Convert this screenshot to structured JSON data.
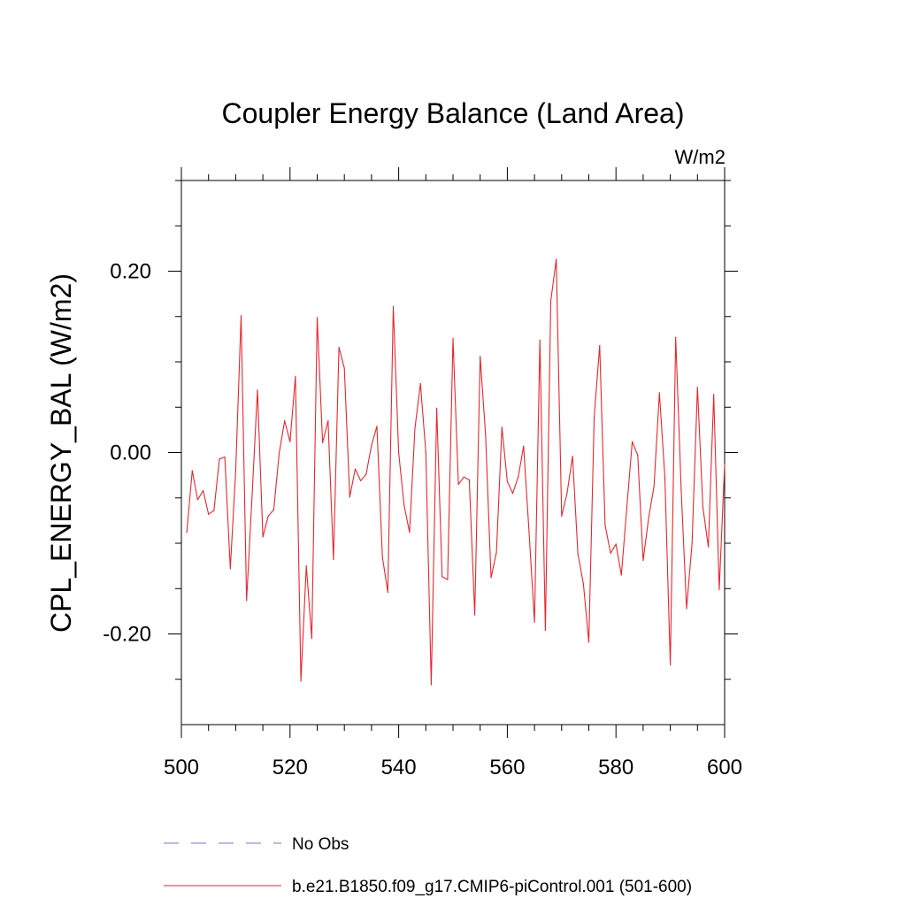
{
  "chart_data": {
    "type": "line",
    "title": "Coupler Energy Balance (Land Area)",
    "units": "W/m2",
    "xlabel": "",
    "ylabel": "CPL_ENERGY_BAL  (W/m2)",
    "xlim": [
      500,
      600
    ],
    "ylim": [
      -0.3,
      0.3
    ],
    "x_ticks": [
      500,
      520,
      540,
      560,
      580,
      600
    ],
    "x_tick_labels": [
      "500",
      "520",
      "540",
      "560",
      "580",
      "600"
    ],
    "y_ticks": [
      -0.2,
      0.0,
      0.2
    ],
    "y_tick_labels": [
      "-0.20",
      "0.00",
      "0.20"
    ],
    "x_minor_step": 5,
    "y_minor_step": 0.05,
    "legend": [
      {
        "label": "No Obs",
        "color": "#7b6fd8",
        "dash": "dashed"
      },
      {
        "label": "b.e21.B1850.f09_g17.CMIP6-piControl.001 (501-600)",
        "color": "#e8262c",
        "dash": "solid"
      }
    ],
    "series": [
      {
        "name": "b.e21.B1850.f09_g17.CMIP6-piControl.001 (501-600)",
        "color": "#e8262c",
        "x": [
          501,
          502,
          503,
          504,
          505,
          506,
          507,
          508,
          509,
          510,
          511,
          512,
          513,
          514,
          515,
          516,
          517,
          518,
          519,
          520,
          521,
          522,
          523,
          524,
          525,
          526,
          527,
          528,
          529,
          530,
          531,
          532,
          533,
          534,
          535,
          536,
          537,
          538,
          539,
          540,
          541,
          542,
          543,
          544,
          545,
          546,
          547,
          548,
          549,
          550,
          551,
          552,
          553,
          554,
          555,
          556,
          557,
          558,
          559,
          560,
          561,
          562,
          563,
          564,
          565,
          566,
          567,
          568,
          569,
          570,
          571,
          572,
          573,
          574,
          575,
          576,
          577,
          578,
          579,
          580,
          581,
          582,
          583,
          584,
          585,
          586,
          587,
          588,
          589,
          590,
          591,
          592,
          593,
          594,
          595,
          596,
          597,
          598,
          599,
          600
        ],
        "values": [
          -0.088,
          -0.02,
          -0.052,
          -0.042,
          -0.068,
          -0.064,
          -0.007,
          -0.005,
          -0.128,
          -0.02,
          0.151,
          -0.163,
          -0.05,
          0.069,
          -0.093,
          -0.07,
          -0.063,
          -0.001,
          0.035,
          0.012,
          0.084,
          -0.252,
          -0.125,
          -0.205,
          0.149,
          0.011,
          0.035,
          -0.118,
          0.116,
          0.093,
          -0.049,
          -0.018,
          -0.031,
          -0.024,
          0.008,
          0.029,
          -0.115,
          -0.154,
          0.161,
          0.0,
          -0.058,
          -0.088,
          0.027,
          0.076,
          0.0,
          -0.256,
          0.049,
          -0.137,
          -0.14,
          0.126,
          -0.035,
          -0.027,
          -0.03,
          -0.179,
          0.106,
          0.02,
          -0.138,
          -0.11,
          0.028,
          -0.032,
          -0.045,
          -0.027,
          0.007,
          -0.088,
          -0.187,
          0.124,
          -0.196,
          0.167,
          0.213,
          -0.07,
          -0.045,
          -0.004,
          -0.112,
          -0.145,
          -0.209,
          0.04,
          0.118,
          -0.08,
          -0.111,
          -0.101,
          -0.135,
          -0.06,
          0.012,
          -0.003,
          -0.119,
          -0.073,
          -0.037,
          0.066,
          -0.028,
          -0.234,
          0.127,
          -0.041,
          -0.172,
          -0.1,
          0.072,
          -0.06,
          -0.104,
          0.064,
          -0.151,
          -0.013
        ]
      }
    ]
  }
}
